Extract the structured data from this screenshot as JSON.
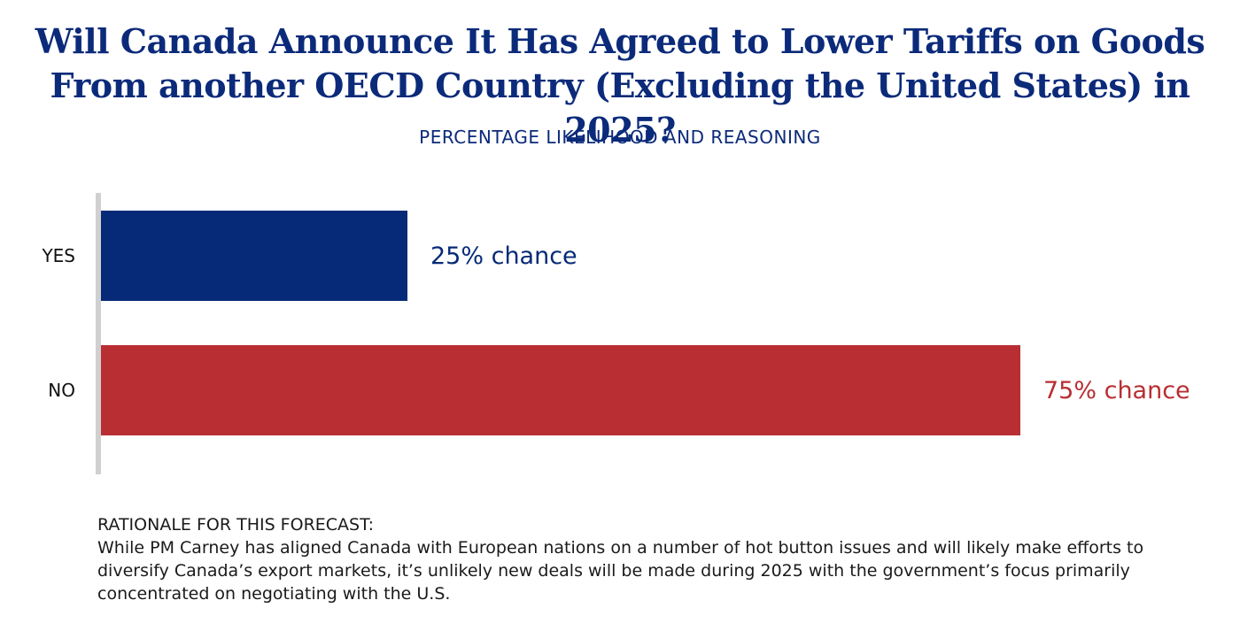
{
  "title": "Will Canada Announce It Has Agreed to Lower Tariffs on Goods From another OECD Country (Excluding the United States) in 2025?",
  "subtitle": "PERCENTAGE LIKELIHOOD AND REASONING",
  "colors": {
    "title": "#0b2a7a",
    "yes": "#062a78",
    "no": "#b82e32",
    "axis": "#d0d0d0",
    "category_text": "#111111"
  },
  "chart_data": {
    "type": "bar",
    "orientation": "horizontal",
    "categories": [
      "YES",
      "NO"
    ],
    "values": [
      25,
      75
    ],
    "unit": "%",
    "data_labels": [
      "25% chance",
      "75% chance"
    ],
    "colors": [
      "#062a78",
      "#b82e32"
    ],
    "xlim": [
      0,
      75
    ],
    "grid": false,
    "legend": "none"
  },
  "rationale": {
    "heading": "RATIONALE FOR THIS FORECAST:",
    "body": "While PM Carney has aligned Canada with European nations on a number of hot button issues and will likely make efforts to diversify Canada’s export markets, it’s unlikely new deals will be made during 2025 with the government’s focus primarily concentrated on negotiating with the U.S."
  }
}
